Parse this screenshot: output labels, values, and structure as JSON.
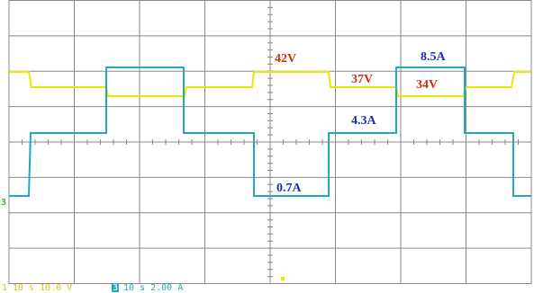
{
  "annotations": [
    {
      "text": "42V",
      "kind": "voltage"
    },
    {
      "text": "37V",
      "kind": "voltage"
    },
    {
      "text": "34V",
      "kind": "voltage"
    },
    {
      "text": "8.5A",
      "kind": "current"
    },
    {
      "text": "4.3A",
      "kind": "current"
    },
    {
      "text": "0.7A",
      "kind": "current"
    }
  ],
  "trace_marker": "3",
  "status": [
    {
      "channel": "1",
      "text": "10 s 10.0 V"
    },
    {
      "channel": "3",
      "text": "10 s 2.00 A"
    }
  ]
}
